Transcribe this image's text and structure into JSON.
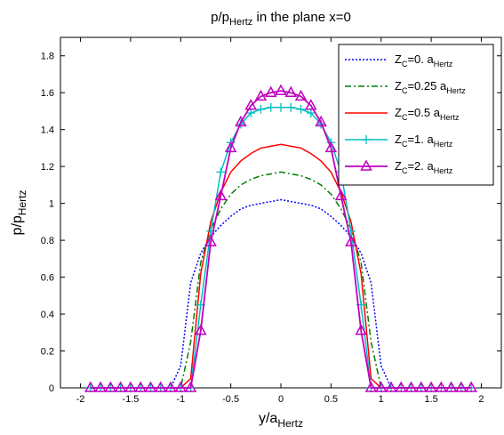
{
  "chart_data": {
    "type": "line",
    "title": {
      "main": "p/p",
      "sub": "Hertz",
      "rest": " in the plane x=0"
    },
    "xlabel": {
      "main": "y/a",
      "sub": "Hertz"
    },
    "ylabel": {
      "main": "p/p",
      "sub": "Hertz"
    },
    "xlim": [
      -2.2,
      2.2
    ],
    "ylim": [
      0,
      1.9
    ],
    "xticks": [
      -2,
      -1.5,
      -1,
      -0.5,
      0,
      0.5,
      1,
      1.5,
      2
    ],
    "xtick_labels": [
      "-2",
      "-1.5",
      "-1",
      "-0.5",
      "0",
      "0.5",
      "1",
      "1.5",
      "2"
    ],
    "yticks": [
      0,
      0.2,
      0.4,
      0.6,
      0.8,
      1,
      1.2,
      1.4,
      1.6,
      1.8
    ],
    "ytick_labels": [
      "0",
      "0.2",
      "0.4",
      "0.6",
      "0.8",
      "1",
      "1.2",
      "1.4",
      "1.6",
      "1.8"
    ],
    "grid": false,
    "legend_position": "top-right",
    "x": [
      -1.9,
      -1.8,
      -1.7,
      -1.6,
      -1.5,
      -1.4,
      -1.3,
      -1.2,
      -1.1,
      -1.0,
      -0.9,
      -0.8,
      -0.7,
      -0.6,
      -0.5,
      -0.4,
      -0.3,
      -0.2,
      -0.1,
      0.0,
      0.1,
      0.2,
      0.3,
      0.4,
      0.5,
      0.6,
      0.7,
      0.8,
      0.9,
      1.0,
      1.1,
      1.2,
      1.3,
      1.4,
      1.5,
      1.6,
      1.7,
      1.8,
      1.9
    ],
    "series": [
      {
        "name": {
          "pre": "Z",
          "sub1": "C",
          "mid": "=0. a",
          "sub2": "Hertz"
        },
        "color": "#0000ff",
        "dash": "2,2",
        "marker": "none",
        "values": [
          0,
          0,
          0,
          0,
          0,
          0,
          0,
          0,
          0,
          0.12,
          0.57,
          0.73,
          0.82,
          0.88,
          0.93,
          0.97,
          0.99,
          1.0,
          1.01,
          1.02,
          1.01,
          1.0,
          0.99,
          0.97,
          0.93,
          0.88,
          0.82,
          0.73,
          0.57,
          0.12,
          0,
          0,
          0,
          0,
          0,
          0,
          0,
          0,
          0
        ]
      },
      {
        "name": {
          "pre": "Z",
          "sub1": "C",
          "mid": "=0.25 a",
          "sub2": "Hertz"
        },
        "color": "#007f00",
        "dash": "7,3,2,3",
        "marker": "none",
        "values": [
          0,
          0,
          0,
          0,
          0,
          0,
          0,
          0,
          0,
          0,
          0.25,
          0.68,
          0.86,
          0.97,
          1.05,
          1.1,
          1.13,
          1.15,
          1.16,
          1.17,
          1.16,
          1.15,
          1.13,
          1.1,
          1.05,
          0.97,
          0.86,
          0.68,
          0.25,
          0,
          0,
          0,
          0,
          0,
          0,
          0,
          0,
          0,
          0
        ]
      },
      {
        "name": {
          "pre": "Z",
          "sub1": "C",
          "mid": "=0.5 a",
          "sub2": "Hertz"
        },
        "color": "#ff0000",
        "dash": "",
        "marker": "none",
        "values": [
          0,
          0,
          0,
          0,
          0,
          0,
          0,
          0,
          0,
          0,
          0.05,
          0.62,
          0.9,
          1.06,
          1.17,
          1.23,
          1.27,
          1.3,
          1.31,
          1.32,
          1.31,
          1.3,
          1.27,
          1.23,
          1.17,
          1.06,
          0.9,
          0.62,
          0.05,
          0,
          0,
          0,
          0,
          0,
          0,
          0,
          0,
          0,
          0
        ]
      },
      {
        "name": {
          "pre": "Z",
          "sub1": "C",
          "mid": "=1. a",
          "sub2": "Hertz"
        },
        "color": "#00bfbf",
        "dash": "",
        "marker": "plus",
        "values": [
          0,
          0,
          0,
          0,
          0,
          0,
          0,
          0,
          0,
          0,
          0,
          0.45,
          0.85,
          1.17,
          1.33,
          1.43,
          1.49,
          1.51,
          1.52,
          1.52,
          1.52,
          1.51,
          1.49,
          1.43,
          1.33,
          1.17,
          0.85,
          0.45,
          0,
          0,
          0,
          0,
          0,
          0,
          0,
          0,
          0,
          0,
          0
        ]
      },
      {
        "name": {
          "pre": "Z",
          "sub1": "C",
          "mid": "=2. a",
          "sub2": "Hertz"
        },
        "color": "#bf00bf",
        "dash": "",
        "marker": "triangle",
        "values": [
          0,
          0,
          0,
          0,
          0,
          0,
          0,
          0,
          0,
          0,
          0,
          0.31,
          0.79,
          1.04,
          1.3,
          1.44,
          1.53,
          1.58,
          1.6,
          1.61,
          1.6,
          1.58,
          1.53,
          1.44,
          1.3,
          1.04,
          0.79,
          0.31,
          0,
          0,
          0,
          0,
          0,
          0,
          0,
          0,
          0,
          0,
          0
        ]
      }
    ]
  }
}
